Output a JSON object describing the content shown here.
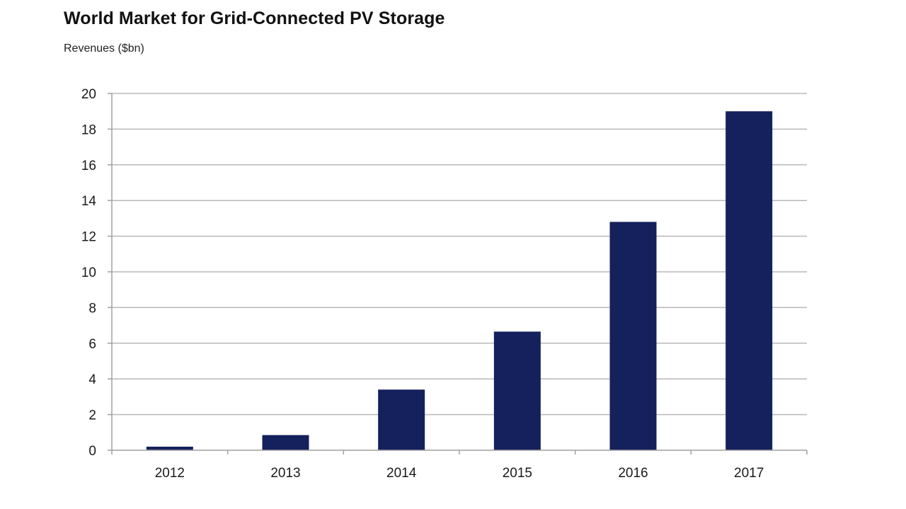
{
  "chart_data": {
    "type": "bar",
    "title": "World Market for Grid-Connected PV Storage",
    "subtitle": "Revenues ($bn)",
    "xlabel": "",
    "ylabel": "",
    "categories": [
      "2012",
      "2013",
      "2014",
      "2015",
      "2016",
      "2017"
    ],
    "values": [
      0.2,
      0.85,
      3.4,
      6.65,
      12.8,
      19.0
    ],
    "ylim": [
      0,
      20
    ],
    "yticks": [
      "0",
      "2",
      "4",
      "6",
      "8",
      "10",
      "12",
      "14",
      "16",
      "18",
      "20"
    ],
    "grid": true,
    "legend": "none",
    "bar_color": "#14215c"
  }
}
